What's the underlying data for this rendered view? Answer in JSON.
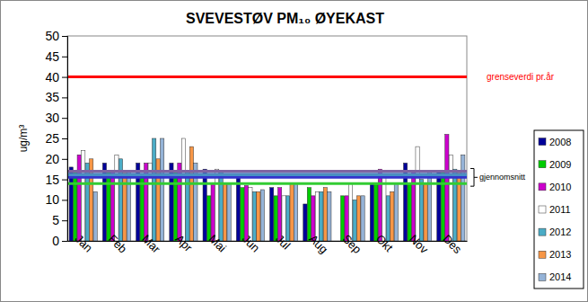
{
  "chart_data": {
    "type": "bar",
    "title": "SVEVESTØV PM₁₀ ØYEKAST",
    "y_label": "ug/m³",
    "categories": [
      "Jan",
      "Feb",
      "Mar",
      "Apr",
      "Mai",
      "Jun",
      "Jul",
      "Aug",
      "Sep",
      "Okt",
      "Nov",
      "Des"
    ],
    "series": [
      {
        "name": "2008",
        "color": "#000099",
        "values": [
          18,
          19,
          19,
          19,
          17.5,
          16,
          13,
          9,
          null,
          14,
          19,
          17
        ]
      },
      {
        "name": "2009",
        "color": "#00cc00",
        "values": [
          17,
          17,
          16,
          17,
          11,
          13,
          11,
          13,
          11,
          14,
          14,
          17
        ]
      },
      {
        "name": "2010",
        "color": "#cc00cc",
        "values": [
          21,
          17,
          19,
          19,
          14,
          13.5,
          13,
          11,
          11,
          17.5,
          17,
          26
        ]
      },
      {
        "name": "2011",
        "color": "#ffffff",
        "values": [
          22,
          21,
          19,
          25,
          17.5,
          13,
          11,
          12,
          14,
          16,
          23,
          21
        ]
      },
      {
        "name": "2012",
        "color": "#4bacc6",
        "values": [
          19,
          20,
          25,
          17,
          17,
          12,
          11,
          12,
          10,
          11,
          15,
          17.5
        ]
      },
      {
        "name": "2013",
        "color": "#f79646",
        "values": [
          20,
          17,
          20,
          23,
          14,
          12,
          14,
          13,
          11,
          12,
          14,
          17
        ]
      },
      {
        "name": "2014",
        "color": "#95b3d7",
        "values": [
          12,
          17,
          25,
          19,
          14,
          12.5,
          14,
          12,
          11,
          14,
          17,
          21
        ]
      }
    ],
    "reference_lines": [
      {
        "value": 40,
        "label": "grenseverdi  pr.år",
        "color": "#ff0000"
      }
    ],
    "average_lines": {
      "label": "gjennomsnitt",
      "values": [
        17,
        16.3,
        15.8,
        15.5,
        14
      ],
      "colors": [
        "#8064a2",
        "#4f81bd",
        "#4bacc6",
        "#3333cc",
        "#33cc33"
      ]
    },
    "ylim": [
      0,
      50
    ],
    "yticks": [
      0,
      5,
      10,
      15,
      20,
      25,
      30,
      35,
      40,
      45,
      50
    ],
    "grid": false,
    "legend": "right"
  }
}
